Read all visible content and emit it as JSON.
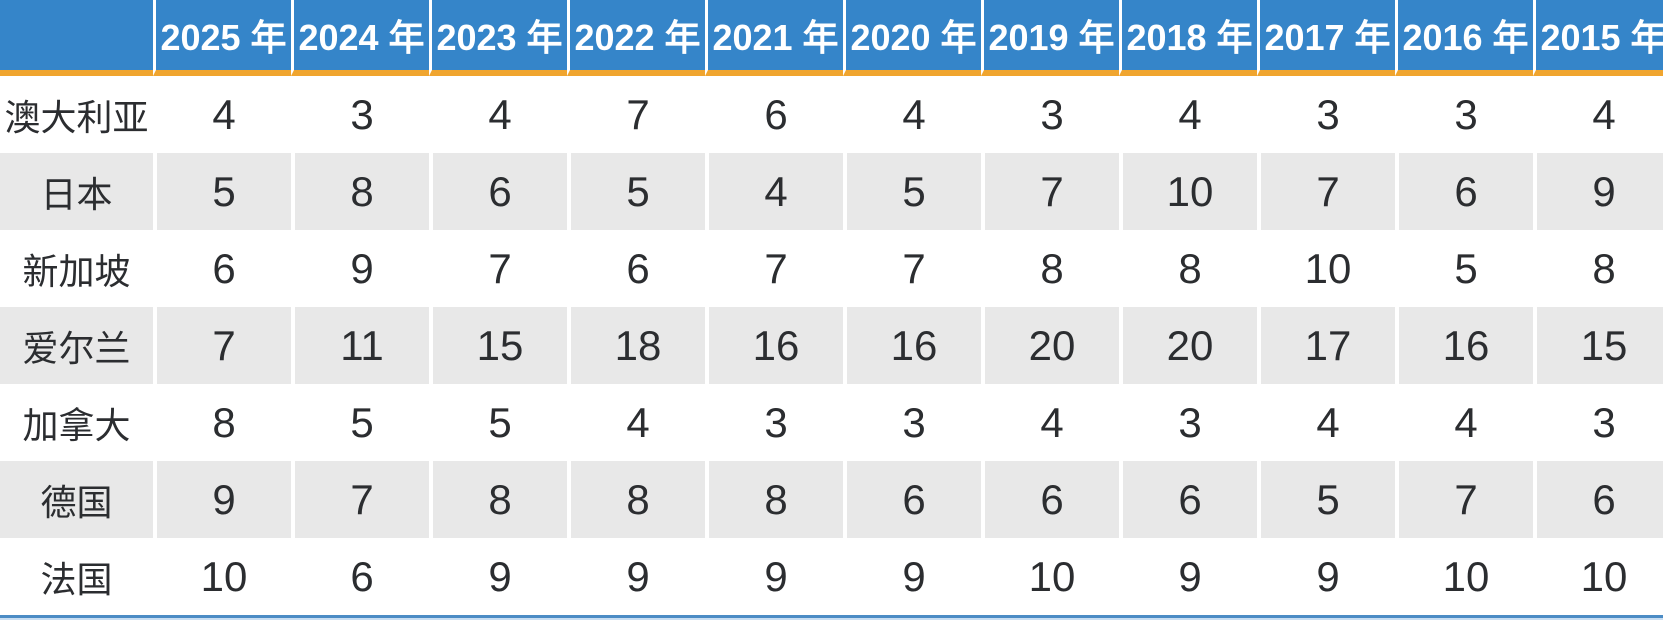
{
  "page": {
    "kind": "yearly-ranking-table"
  },
  "colors": {
    "header_bg": "#3585C9",
    "header_text": "#FFFFFF",
    "accent_line": "#F0A52F",
    "row_alt_bg": "#E8E8E8",
    "row_bg": "#FFFFFF",
    "cell_text": "#2B2D30",
    "bottom_line": "#4C8CC5",
    "bottom_line_light": "#C9DEF2"
  },
  "chart_data": {
    "type": "table",
    "columns": [
      "",
      "2025 年",
      "2024 年",
      "2023 年",
      "2022 年",
      "2021 年",
      "2020 年",
      "2019 年",
      "2018 年",
      "2017 年",
      "2016 年",
      "2015 年"
    ],
    "rows": [
      {
        "label": "澳大利亚",
        "values": [
          4,
          3,
          4,
          7,
          6,
          4,
          3,
          4,
          3,
          3,
          4
        ]
      },
      {
        "label": "日本",
        "values": [
          5,
          8,
          6,
          5,
          4,
          5,
          7,
          10,
          7,
          6,
          9
        ]
      },
      {
        "label": "新加坡",
        "values": [
          6,
          9,
          7,
          6,
          7,
          7,
          8,
          8,
          10,
          5,
          8
        ]
      },
      {
        "label": "爱尔兰",
        "values": [
          7,
          11,
          15,
          18,
          16,
          16,
          20,
          20,
          17,
          16,
          15
        ]
      },
      {
        "label": "加拿大",
        "values": [
          8,
          5,
          5,
          4,
          3,
          3,
          4,
          3,
          4,
          4,
          3
        ]
      },
      {
        "label": "德国",
        "values": [
          9,
          7,
          8,
          8,
          8,
          6,
          6,
          6,
          5,
          7,
          6
        ]
      },
      {
        "label": "法国",
        "values": [
          10,
          6,
          9,
          9,
          9,
          9,
          10,
          9,
          9,
          10,
          10
        ]
      }
    ],
    "layout": {
      "header_position": "top",
      "alternating_rows": true,
      "first_column_is_row_label": true,
      "right_edge_clipped": true
    }
  }
}
